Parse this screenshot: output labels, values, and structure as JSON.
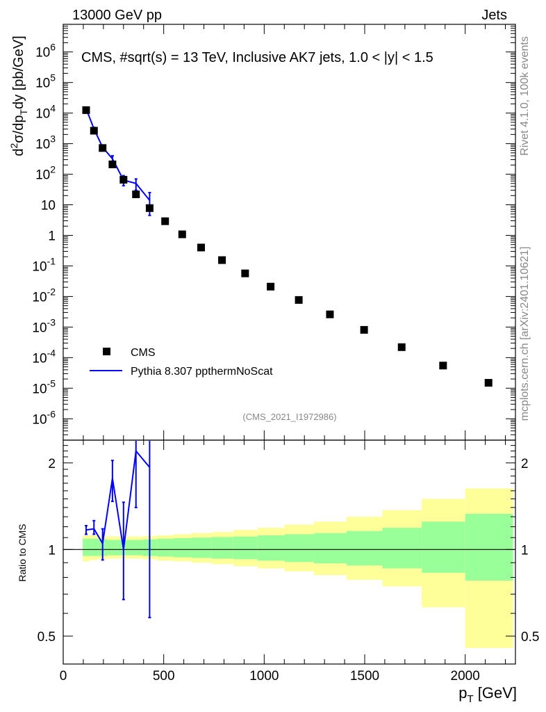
{
  "header": {
    "energy_label": "13000 GeV pp",
    "process_label": "Jets",
    "rivet_label": "Rivet 4.1.0,  100k events",
    "source_label": "mcplots.cern.ch [arXiv:2401.10621]"
  },
  "chart_data": [
    {
      "id": "main",
      "type": "scatter",
      "title": "CMS, #sqrt(s) = 13 TeV, Inclusive AK7 jets, 1.0 < |y| < 1.5",
      "analysis_id": "(CMS_2021_I1972986)",
      "ylabel": {
        "pre": "d",
        "sup": "2",
        "mid": "σ/dp",
        "sub": "T",
        "post": "dy [pb/GeV]"
      },
      "xlim": [
        0,
        2250
      ],
      "ylim": [
        2e-07,
        8000000.0
      ],
      "yscale": "log",
      "ytick_labels": [
        {
          "value": 1000000.0,
          "base": "10",
          "exp": "6"
        },
        {
          "value": 100000.0,
          "base": "10",
          "exp": "5"
        },
        {
          "value": 10000.0,
          "base": "10",
          "exp": "4"
        },
        {
          "value": 1000.0,
          "base": "10",
          "exp": "3"
        },
        {
          "value": 100.0,
          "base": "10",
          "exp": "2"
        },
        {
          "value": 10,
          "base": "10",
          "exp": ""
        },
        {
          "value": 1,
          "base": "1",
          "exp": ""
        },
        {
          "value": 0.1,
          "base": "10",
          "exp": "-1"
        },
        {
          "value": 0.01,
          "base": "10",
          "exp": "-2"
        },
        {
          "value": 0.001,
          "base": "10",
          "exp": "-3"
        },
        {
          "value": 0.0001,
          "base": "10",
          "exp": "-4"
        },
        {
          "value": 1e-05,
          "base": "10",
          "exp": "-5"
        },
        {
          "value": 1e-06,
          "base": "10",
          "exp": "-6"
        }
      ],
      "legend": {
        "position": "bottom-left",
        "entries": [
          "CMS",
          "Pythia 8.307 ppthermNoScat"
        ]
      },
      "series": [
        {
          "name": "CMS",
          "style": "square-marker",
          "color": "#000000",
          "x": [
            114,
            153,
            196,
            245,
            300,
            362,
            430,
            507,
            592,
            686,
            790,
            905,
            1032,
            1172,
            1327,
            1497,
            1684,
            1890,
            2116
          ],
          "y": [
            12500,
            2650,
            720,
            210,
            66,
            22,
            7.8,
            2.9,
            1.08,
            0.4,
            0.155,
            0.057,
            0.021,
            0.0077,
            0.0026,
            0.00081,
            0.00022,
            5.5e-05,
            1.5e-05
          ]
        },
        {
          "name": "Pythia 8.307 ppthermNoScat",
          "style": "line",
          "color": "#0000ff",
          "x": [
            114,
            153,
            196,
            245,
            300,
            362,
            430
          ],
          "y": [
            14000,
            3050,
            760,
            320,
            64,
            50,
            14
          ],
          "err_lo": [
            12800,
            2700,
            660,
            250,
            42,
            30,
            4.5
          ],
          "err_hi": [
            15300,
            3400,
            870,
            400,
            90,
            70,
            25
          ]
        }
      ]
    },
    {
      "id": "ratio",
      "type": "line",
      "ylabel": "Ratio to CMS",
      "xlabel": {
        "main": "p",
        "sub": "T",
        "unit": " [GeV]"
      },
      "xlim": [
        0,
        2250
      ],
      "ylim": [
        0.4,
        2.4
      ],
      "yscale": "log",
      "x_ticks": [
        0,
        500,
        1000,
        1500,
        2000
      ],
      "y_ticks": [
        0.5,
        1,
        2
      ],
      "bands": {
        "edges": [
          97,
          133,
          174,
          220,
          272,
          330,
          395,
          468,
          548,
          638,
          737,
          846,
          967,
          1101,
          1248,
          1410,
          1588,
          1784,
          2000,
          2238
        ],
        "stat_lo": [
          0.95,
          0.95,
          0.95,
          0.955,
          0.955,
          0.955,
          0.95,
          0.945,
          0.94,
          0.935,
          0.93,
          0.925,
          0.915,
          0.905,
          0.895,
          0.88,
          0.86,
          0.83,
          0.78
        ],
        "stat_hi": [
          1.09,
          1.09,
          1.085,
          1.08,
          1.08,
          1.08,
          1.085,
          1.09,
          1.095,
          1.1,
          1.105,
          1.11,
          1.12,
          1.13,
          1.14,
          1.16,
          1.19,
          1.25,
          1.33
        ],
        "total_lo": [
          0.91,
          0.92,
          0.925,
          0.93,
          0.93,
          0.93,
          0.925,
          0.915,
          0.91,
          0.9,
          0.89,
          0.875,
          0.86,
          0.84,
          0.815,
          0.785,
          0.745,
          0.63,
          0.455
        ],
        "total_hi": [
          1.12,
          1.12,
          1.115,
          1.11,
          1.11,
          1.11,
          1.115,
          1.12,
          1.13,
          1.14,
          1.15,
          1.17,
          1.19,
          1.22,
          1.25,
          1.3,
          1.37,
          1.5,
          1.63
        ]
      },
      "series": [
        {
          "name": "Pythia 8.307 ppthermNoScat / CMS",
          "color": "#0000ff",
          "x": [
            114,
            153,
            196,
            245,
            300,
            362,
            430
          ],
          "y": [
            1.17,
            1.18,
            1.05,
            1.77,
            1.0,
            2.2,
            1.93
          ],
          "err_lo": [
            1.13,
            1.13,
            0.92,
            1.47,
            0.67,
            1.4,
            0.58
          ],
          "err_hi": [
            1.21,
            1.26,
            1.18,
            2.04,
            1.46,
            2.4,
            2.4
          ]
        }
      ]
    }
  ]
}
